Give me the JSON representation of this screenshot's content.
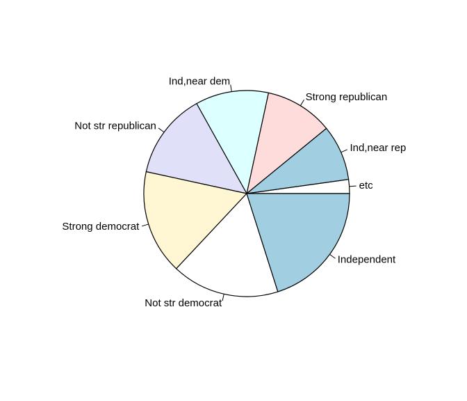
{
  "chart_data": {
    "type": "pie",
    "title": "",
    "start_angle_deg": 0,
    "direction": "counterclockwise",
    "slices": [
      {
        "label": "etc",
        "value": 2.2,
        "color": "#ffffff"
      },
      {
        "label": "Ind,near rep",
        "value": 8.7,
        "color": "#a1cfe1"
      },
      {
        "label": "Strong republican",
        "value": 10.7,
        "color": "#ffdcdc"
      },
      {
        "label": "Ind,near dem",
        "value": 11.5,
        "color": "#dcffff"
      },
      {
        "label": "Not str republican",
        "value": 13.5,
        "color": "#e0e0f9"
      },
      {
        "label": "Strong democrat",
        "value": 16.4,
        "color": "#fff6d4"
      },
      {
        "label": "Not str democrat",
        "value": 16.9,
        "color": "#ffffff"
      },
      {
        "label": "Independent",
        "value": 20.1,
        "color": "#a1cfe1"
      }
    ]
  }
}
